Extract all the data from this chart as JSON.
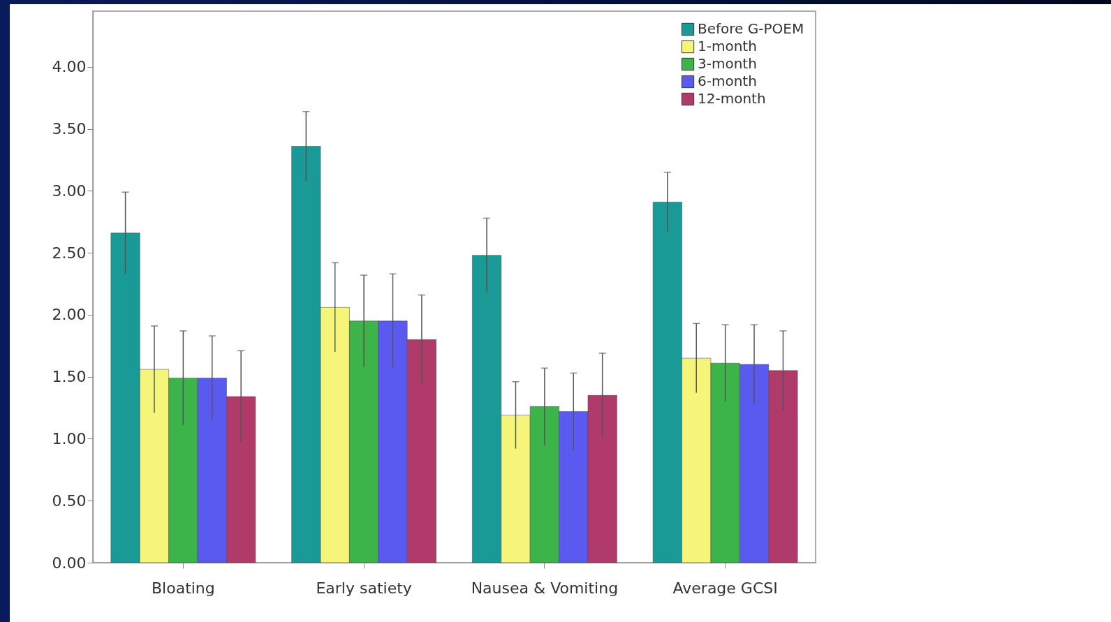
{
  "chart_data": {
    "type": "bar",
    "categories": [
      "Bloating",
      "Early satiety",
      "Nausea &\nVomiting",
      "Average GCSI"
    ],
    "series": [
      {
        "name": "Before G-POEM",
        "color": "#1a9a96",
        "values": [
          2.66,
          3.36,
          2.48,
          2.91
        ],
        "errors": [
          0.33,
          0.28,
          0.3,
          0.24
        ]
      },
      {
        "name": "1-month",
        "color": "#f5f57a",
        "values": [
          1.56,
          2.06,
          1.19,
          1.65
        ],
        "errors": [
          0.35,
          0.36,
          0.27,
          0.28
        ]
      },
      {
        "name": "3-month",
        "color": "#3cb44a",
        "values": [
          1.49,
          1.95,
          1.26,
          1.61
        ],
        "errors": [
          0.38,
          0.37,
          0.31,
          0.31
        ]
      },
      {
        "name": "6-month",
        "color": "#5a5af0",
        "values": [
          1.49,
          1.95,
          1.22,
          1.6
        ],
        "errors": [
          0.34,
          0.38,
          0.31,
          0.32
        ]
      },
      {
        "name": "12-month",
        "color": "#b03a6a",
        "values": [
          1.34,
          1.8,
          1.35,
          1.55
        ],
        "errors": [
          0.37,
          0.36,
          0.34,
          0.32
        ]
      }
    ],
    "ylim": [
      0,
      4.45
    ],
    "yticks": [
      {
        "value": 0,
        "label": "0.00"
      },
      {
        "value": 0.5,
        "label": "0.50"
      },
      {
        "value": 1,
        "label": "1.00"
      },
      {
        "value": 1.5,
        "label": "1.50"
      },
      {
        "value": 2,
        "label": "2.00"
      },
      {
        "value": 2.5,
        "label": "2.50"
      },
      {
        "value": 3,
        "label": "3.00"
      },
      {
        "value": 3.5,
        "label": "3.50"
      },
      {
        "value": 4,
        "label": "4.00"
      }
    ],
    "grid": false,
    "legend": "top right"
  }
}
